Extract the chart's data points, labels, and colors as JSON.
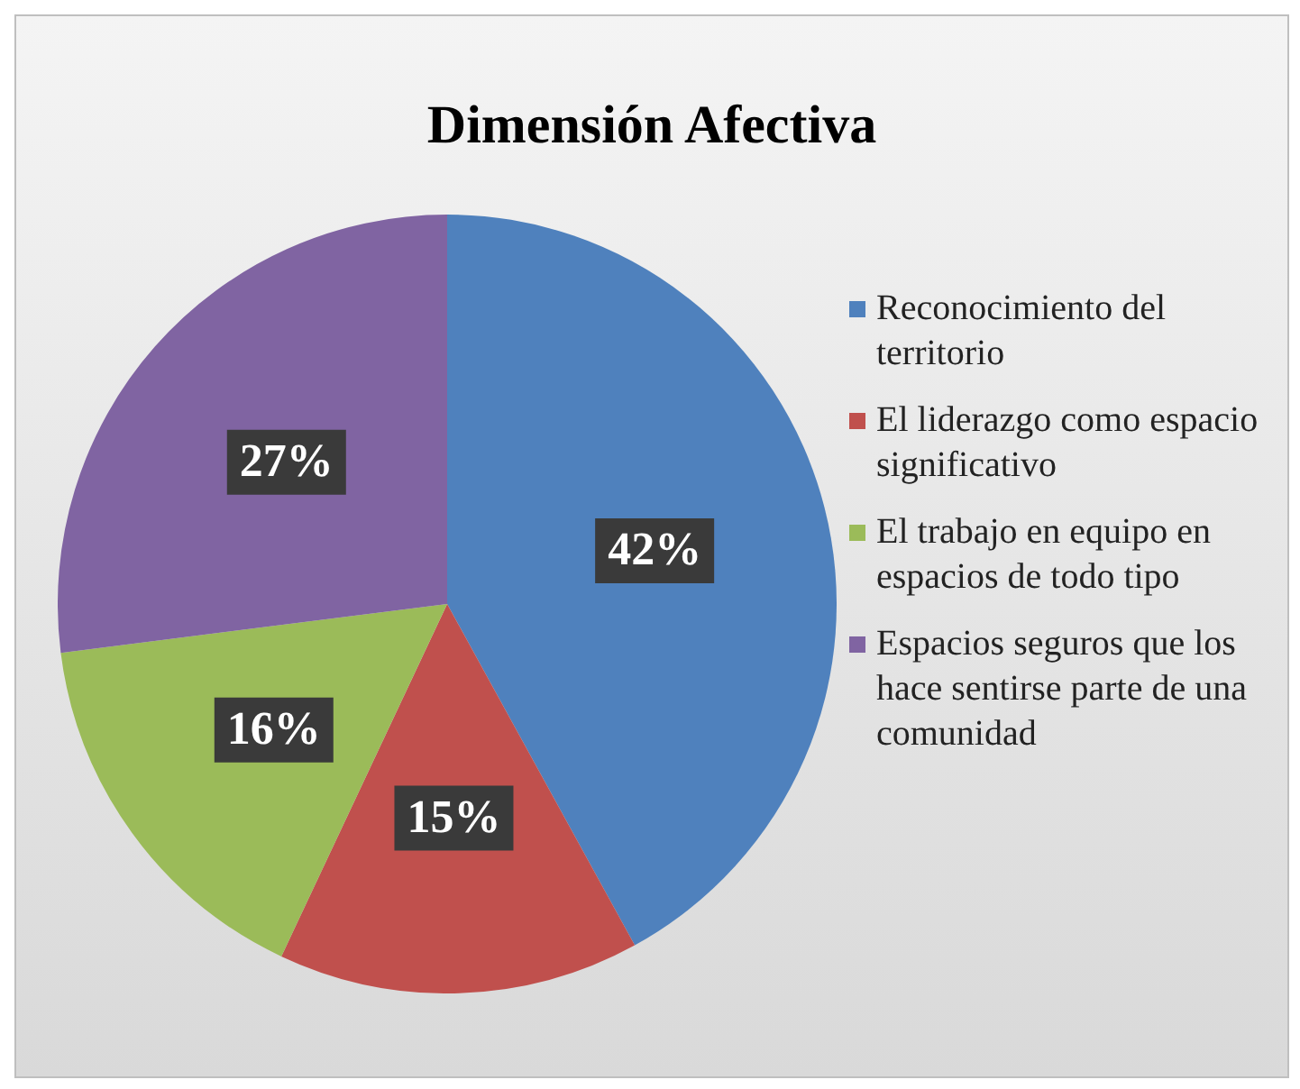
{
  "chart_data": {
    "type": "pie",
    "title": "Dimensión Afectiva",
    "categories": [
      "Reconocimiento del territorio",
      "El liderazgo como espacio significativo",
      "El trabajo en equipo en espacios de todo tipo",
      "Espacios seguros que los hace sentirse parte de una comunidad"
    ],
    "values": [
      42,
      15,
      16,
      27
    ],
    "colors": [
      "#4f81bd",
      "#c0504d",
      "#9bbb59",
      "#8064a2"
    ],
    "value_labels": [
      "42%",
      "15%",
      "16%",
      "27%"
    ],
    "legend": "right"
  }
}
